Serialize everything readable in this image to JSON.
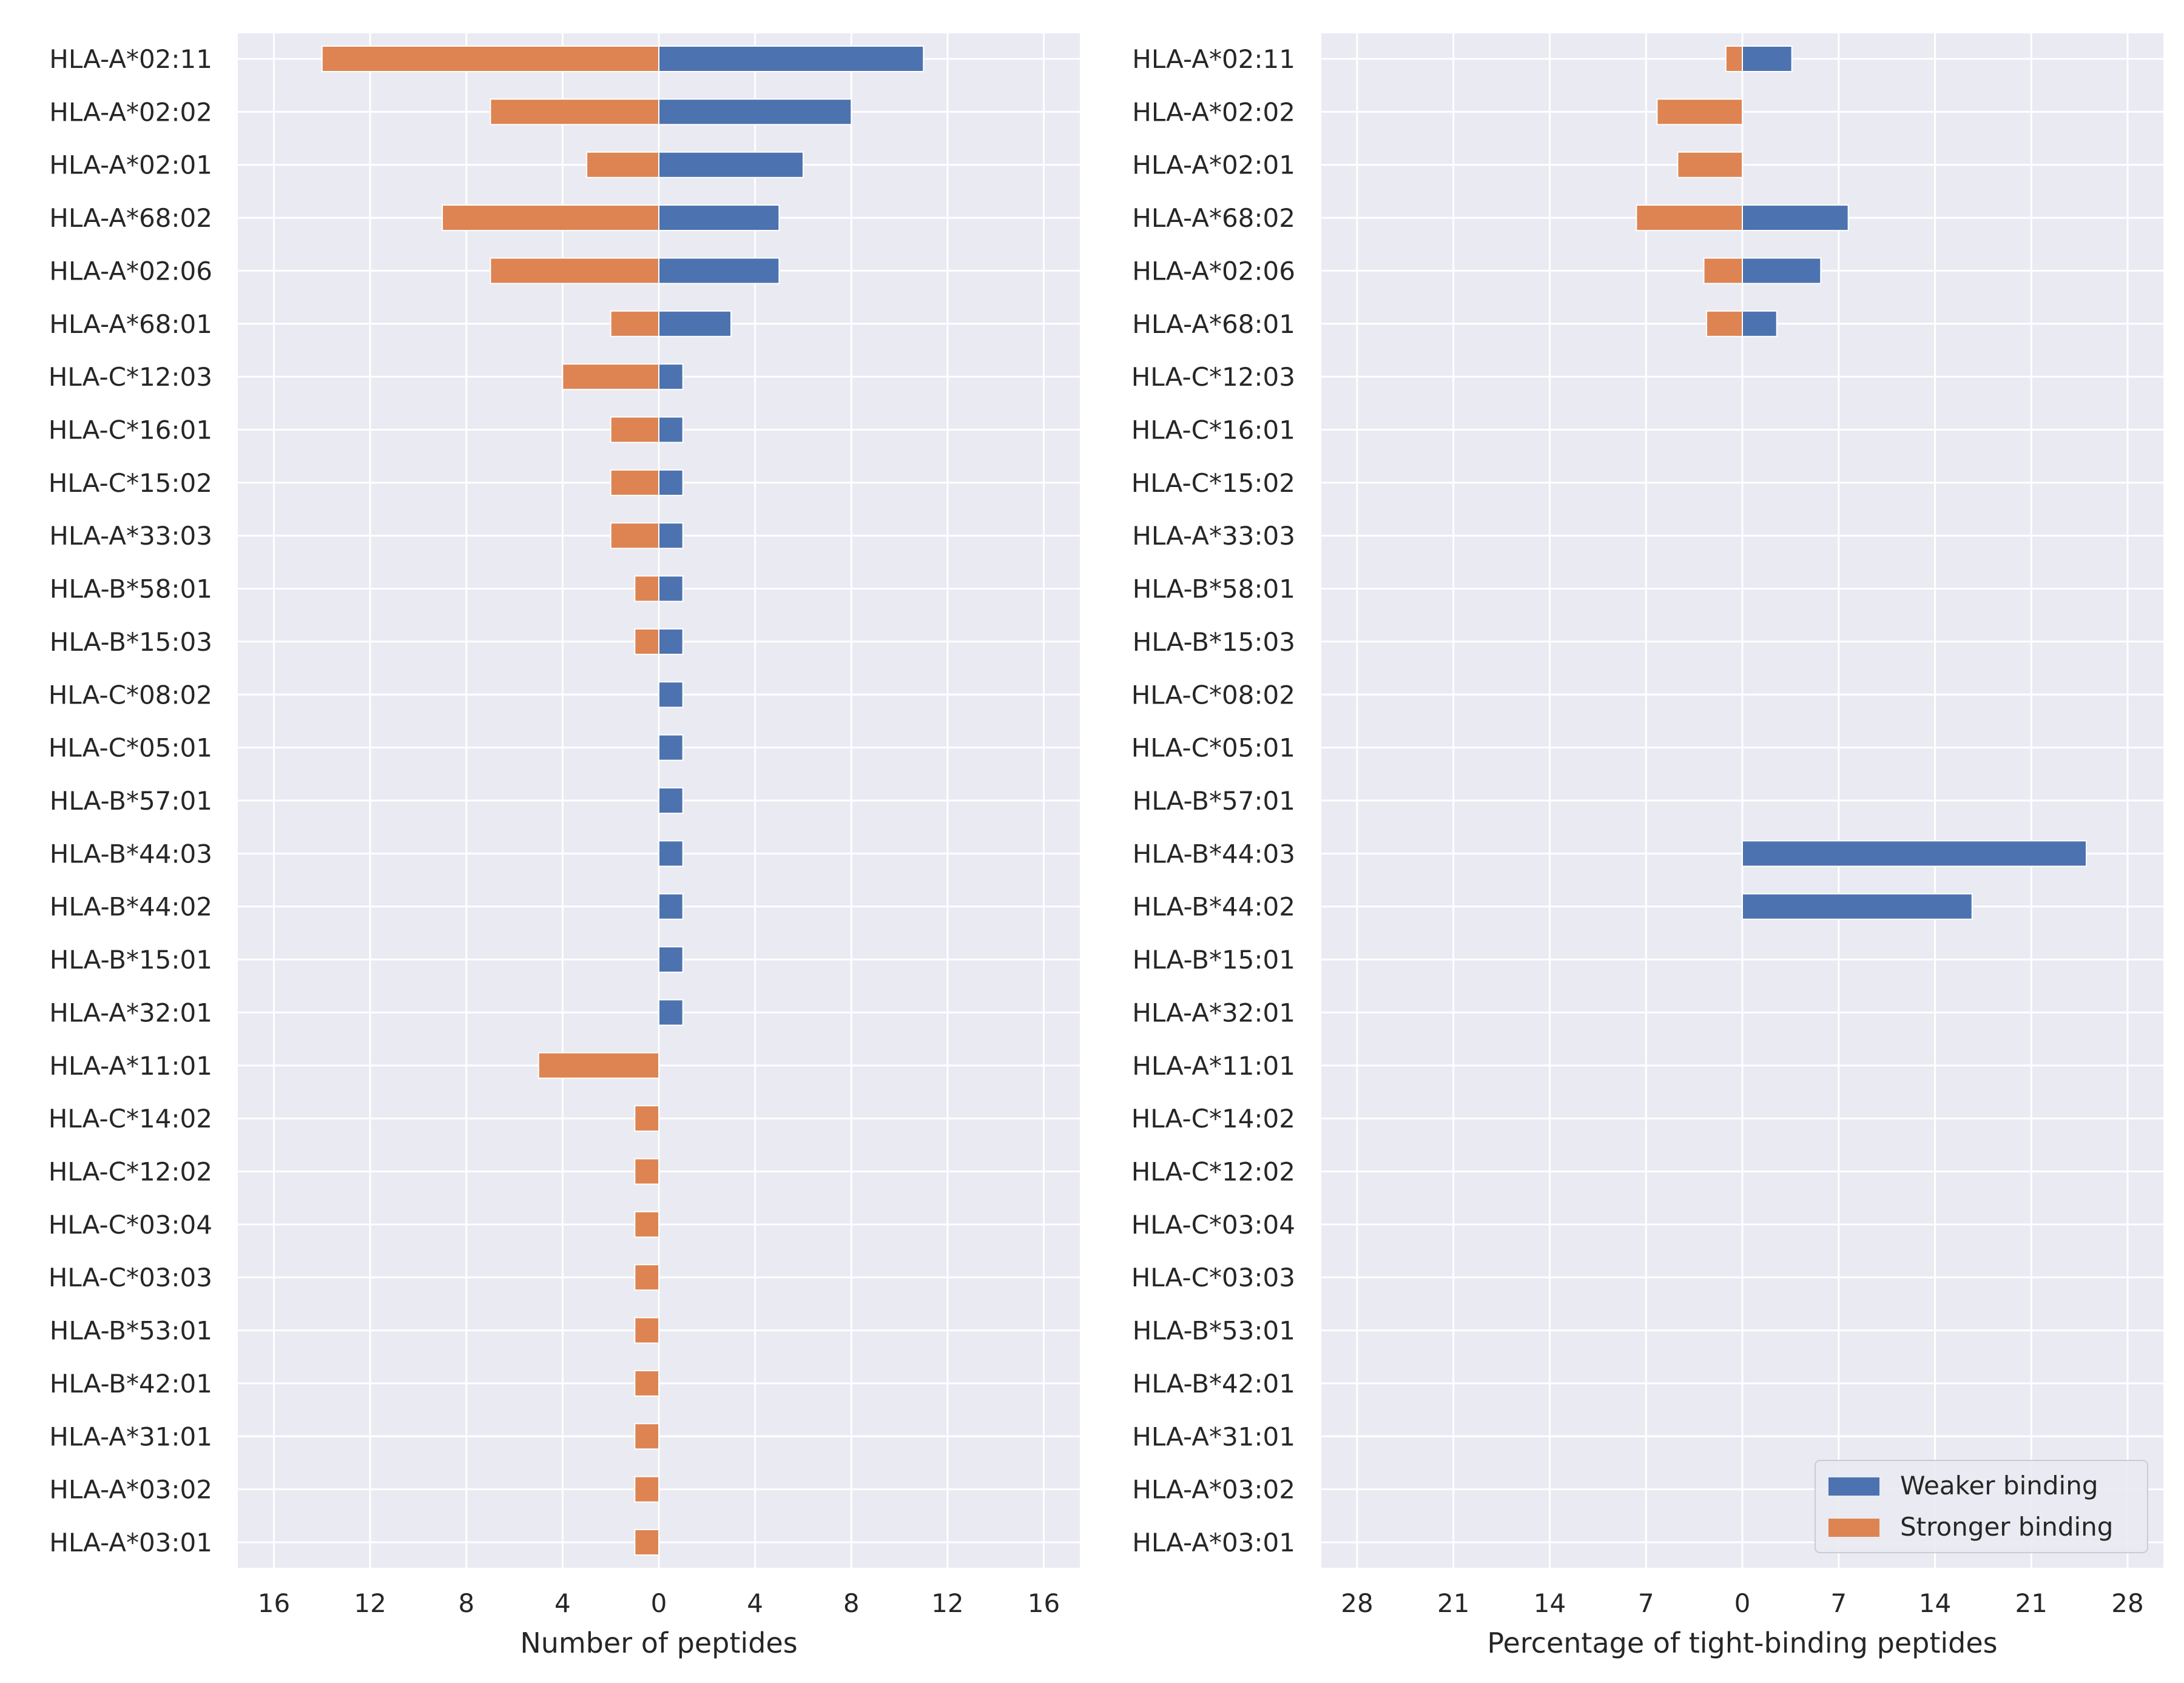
{
  "colors": {
    "weaker": "#4c72b0",
    "stronger": "#dd8452",
    "panel_bg": "#eaeaf2",
    "grid": "#ffffff"
  },
  "chart_data": [
    {
      "type": "bar",
      "orientation": "horizontal",
      "categories": [
        "HLA-A*02:11",
        "HLA-A*02:02",
        "HLA-A*02:01",
        "HLA-A*68:02",
        "HLA-A*02:06",
        "HLA-A*68:01",
        "HLA-C*12:03",
        "HLA-C*16:01",
        "HLA-C*15:02",
        "HLA-A*33:03",
        "HLA-B*58:01",
        "HLA-B*15:03",
        "HLA-C*08:02",
        "HLA-C*05:01",
        "HLA-B*57:01",
        "HLA-B*44:03",
        "HLA-B*44:02",
        "HLA-B*15:01",
        "HLA-A*32:01",
        "HLA-A*11:01",
        "HLA-C*14:02",
        "HLA-C*12:02",
        "HLA-C*03:04",
        "HLA-C*03:03",
        "HLA-B*53:01",
        "HLA-B*42:01",
        "HLA-A*31:01",
        "HLA-A*03:02",
        "HLA-A*03:01"
      ],
      "series": [
        {
          "name": "Weaker binding",
          "values": [
            11,
            8,
            6,
            5,
            5,
            3,
            1,
            1,
            1,
            1,
            1,
            1,
            1,
            1,
            1,
            1,
            1,
            1,
            1,
            0,
            0,
            0,
            0,
            0,
            0,
            0,
            0,
            0,
            0
          ]
        },
        {
          "name": "Stronger binding",
          "values": [
            14,
            7,
            3,
            9,
            7,
            2,
            4,
            2,
            2,
            2,
            1,
            1,
            0,
            0,
            0,
            0,
            0,
            0,
            0,
            5,
            1,
            1,
            1,
            1,
            1,
            1,
            1,
            1,
            1
          ]
        }
      ],
      "xlabel": "Number of peptides",
      "xlim": [
        -17.5,
        17.5
      ],
      "xticks": [
        -16,
        -12,
        -8,
        -4,
        0,
        4,
        8,
        12,
        16
      ],
      "xtick_labels": [
        "16",
        "12",
        "8",
        "4",
        "0",
        "4",
        "8",
        "12",
        "16"
      ],
      "grid": true
    },
    {
      "type": "bar",
      "orientation": "horizontal",
      "categories": [
        "HLA-A*02:11",
        "HLA-A*02:02",
        "HLA-A*02:01",
        "HLA-A*68:02",
        "HLA-A*02:06",
        "HLA-A*68:01",
        "HLA-C*12:03",
        "HLA-C*16:01",
        "HLA-C*15:02",
        "HLA-A*33:03",
        "HLA-B*58:01",
        "HLA-B*15:03",
        "HLA-C*08:02",
        "HLA-C*05:01",
        "HLA-B*57:01",
        "HLA-B*44:03",
        "HLA-B*44:02",
        "HLA-B*15:01",
        "HLA-A*32:01",
        "HLA-A*11:01",
        "HLA-C*14:02",
        "HLA-C*12:02",
        "HLA-C*03:04",
        "HLA-C*03:03",
        "HLA-B*53:01",
        "HLA-B*42:01",
        "HLA-A*31:01",
        "HLA-A*03:02",
        "HLA-A*03:01"
      ],
      "series": [
        {
          "name": "Weaker binding",
          "values": [
            3.6,
            0,
            0,
            7.7,
            5.7,
            2.5,
            0,
            0,
            0,
            0,
            0,
            0,
            0,
            0,
            0,
            25,
            16.7,
            0,
            0,
            0,
            0,
            0,
            0,
            0,
            0,
            0,
            0,
            0,
            0
          ]
        },
        {
          "name": "Stronger binding",
          "values": [
            1.2,
            6.2,
            4.7,
            7.7,
            2.8,
            2.6,
            0,
            0,
            0,
            0,
            0,
            0,
            0,
            0,
            0,
            0,
            0,
            0,
            0,
            0,
            0,
            0,
            0,
            0,
            0,
            0,
            0,
            0,
            0
          ]
        }
      ],
      "xlabel": "Percentage of tight-binding peptides",
      "xlim": [
        -30.6,
        30.6
      ],
      "xticks": [
        -28,
        -21,
        -14,
        -7,
        0,
        7,
        14,
        21,
        28
      ],
      "xtick_labels": [
        "28",
        "21",
        "14",
        "7",
        "0",
        "7",
        "14",
        "21",
        "28"
      ],
      "grid": true,
      "legend": {
        "placement": "lower-right",
        "entries": [
          "Weaker binding",
          "Stronger binding"
        ]
      }
    }
  ]
}
